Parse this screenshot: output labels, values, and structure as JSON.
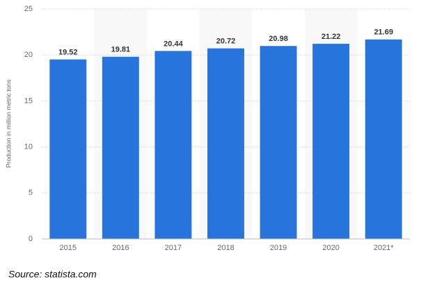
{
  "chart_data": {
    "type": "bar",
    "y_label": "Production in million metric tons",
    "categories": [
      "2015",
      "2016",
      "2017",
      "2018",
      "2019",
      "2020",
      "2021*"
    ],
    "values": [
      19.52,
      19.81,
      20.44,
      20.72,
      20.98,
      21.22,
      21.69
    ],
    "color": "#2874dd",
    "ylim": [
      0,
      25
    ],
    "yticks": [
      0,
      5,
      10,
      15,
      20,
      25
    ],
    "grid": true,
    "source": "Source: statista.com"
  }
}
